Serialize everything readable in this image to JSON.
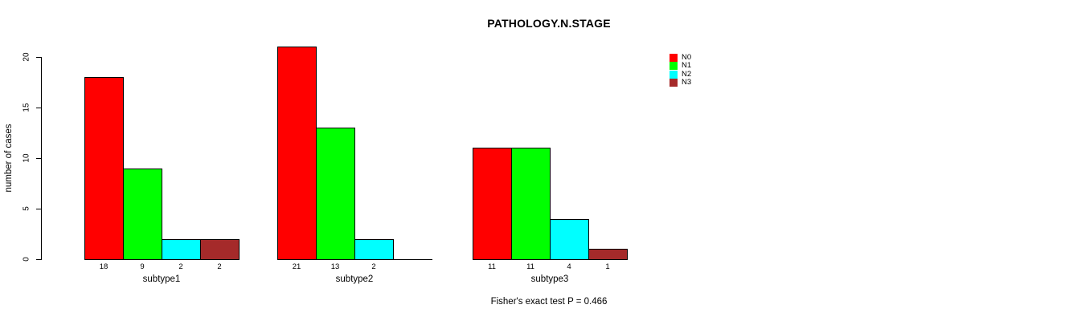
{
  "chart_data": {
    "type": "bar",
    "title": "PATHOLOGY.N.STAGE",
    "xlabel": "",
    "ylabel": "number of cases",
    "ylim": [
      0,
      20
    ],
    "yticks": [
      0,
      5,
      10,
      15,
      20
    ],
    "grid": false,
    "legend_position": "top-right",
    "bar_value_labels": true,
    "categories": [
      "subtype1",
      "subtype2",
      "subtype3"
    ],
    "series": [
      {
        "name": "N0",
        "color": "#FF0000",
        "values": [
          18,
          21,
          11
        ]
      },
      {
        "name": "N1",
        "color": "#00FF00",
        "values": [
          9,
          13,
          11
        ]
      },
      {
        "name": "N2",
        "color": "#00FFFF",
        "values": [
          2,
          2,
          4
        ]
      },
      {
        "name": "N3",
        "color": "#A52A2A",
        "values": [
          2,
          0,
          1
        ]
      }
    ],
    "annotation": "Fisher's exact test P = 0.466"
  }
}
